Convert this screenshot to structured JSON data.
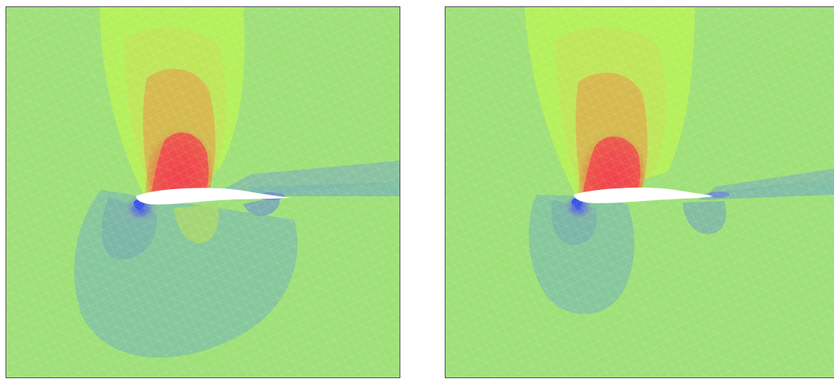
{
  "figure": {
    "panels": [
      {
        "id": "left",
        "description_free": true
      },
      {
        "id": "right",
        "description_free": true
      }
    ],
    "colors": {
      "background_field": "#9be27a",
      "far_field_green": "#a3e36c",
      "suction_lobe_yellow_green": "#b7f05a",
      "high_value_red": "#f24a4a",
      "mid_orange": "#e88a4a",
      "low_value_blue": "#4a5bd6",
      "wake_blue_green": "#7fb8a6",
      "airfoil_white": "#ffffff",
      "mesh_line": "#ffffff"
    }
  }
}
